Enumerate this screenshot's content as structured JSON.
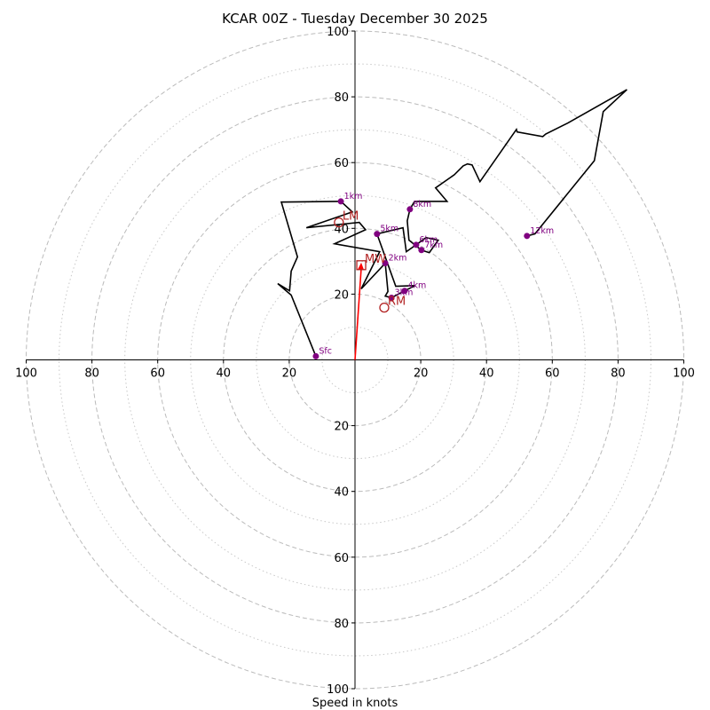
{
  "chart_data": {
    "type": "line",
    "subtype": "hodograph",
    "title": "KCAR 00Z - Tuesday December 30 2025",
    "xlabel": "Speed in knots",
    "ylabel": "",
    "units": "knots",
    "xlim": [
      -100,
      100
    ],
    "ylim": [
      -100,
      100
    ],
    "rings": {
      "dashed": [
        20,
        40,
        60,
        80,
        100
      ],
      "dotted": [
        10,
        30,
        50,
        70,
        90
      ]
    },
    "x_tick_labels": [
      "100",
      "80",
      "60",
      "40",
      "20",
      "20",
      "40",
      "60",
      "80",
      "100"
    ],
    "x_tick_values": [
      -100,
      -80,
      -60,
      -40,
      -20,
      20,
      40,
      60,
      80,
      100
    ],
    "y_tick_labels": [
      "100",
      "80",
      "60",
      "40",
      "20",
      "20",
      "40",
      "60",
      "80",
      "100"
    ],
    "y_tick_values": [
      100,
      80,
      60,
      40,
      20,
      -20,
      -40,
      -60,
      -80,
      -100
    ],
    "grid": true,
    "legend": "none",
    "colors": {
      "trace": "#000000",
      "height_marker": "#800080",
      "storm_motion": "#b22222",
      "arrow": "#ff0000",
      "grid": "#bbbbbb"
    },
    "trace": {
      "name": "Wind profile",
      "u": [
        -11.9,
        -19.4,
        -23.5,
        -19.9,
        -19.4,
        -17.5,
        -22.4,
        -4.3,
        -0.8,
        -14.8,
        1.3,
        3.2,
        -6.2,
        7.5,
        1.9,
        9.2,
        10.0,
        9.2,
        11.1,
        15.1,
        18.3,
        12.4,
        6.7,
        14.6,
        15.6,
        18.6,
        21.6,
        25.3,
        22.6,
        20.2,
        16.4,
        15.9,
        16.7,
        18.1,
        28.0,
        24.5,
        30.2,
        32.9,
        34.2,
        35.6,
        38.0,
        49.1,
        49.3,
        57.1,
        58.0,
        64.7,
        82.7,
        75.5,
        72.8,
        54.7,
        52.3
      ],
      "v": [
        1.1,
        19.7,
        23.2,
        21.0,
        27.0,
        31.3,
        48.0,
        48.2,
        45.0,
        40.2,
        41.8,
        39.6,
        35.3,
        32.9,
        21.6,
        29.4,
        20.8,
        19.4,
        18.9,
        21.0,
        22.6,
        22.4,
        38.3,
        40.2,
        32.9,
        35.0,
        37.2,
        36.4,
        32.6,
        33.4,
        36.4,
        42.3,
        45.8,
        48.2,
        48.2,
        52.3,
        56.3,
        59.0,
        59.6,
        59.3,
        54.2,
        70.1,
        69.3,
        67.9,
        68.7,
        72.0,
        82.2,
        75.5,
        60.6,
        38.3,
        37.7
      ]
    },
    "height_markers": [
      {
        "label": "Sfc",
        "u": -11.9,
        "v": 1.1
      },
      {
        "label": "1km",
        "u": -4.3,
        "v": 48.2
      },
      {
        "label": "2km",
        "u": 9.2,
        "v": 29.4
      },
      {
        "label": "3km",
        "u": 11.1,
        "v": 18.9
      },
      {
        "label": "4km",
        "u": 15.1,
        "v": 21.0
      },
      {
        "label": "5km",
        "u": 6.7,
        "v": 38.3
      },
      {
        "label": "6km",
        "u": 18.6,
        "v": 35.0
      },
      {
        "label": "7km",
        "u": 20.2,
        "v": 33.4
      },
      {
        "label": "8km",
        "u": 16.7,
        "v": 45.8
      },
      {
        "label": "12km",
        "u": 52.3,
        "v": 37.7
      }
    ],
    "storm_motions": [
      {
        "label": "LM",
        "marker": "circle",
        "u": -4.9,
        "v": 41.8
      },
      {
        "label": "MW",
        "marker": "square",
        "u": 1.9,
        "v": 28.8
      },
      {
        "label": "RM",
        "marker": "circle",
        "u": 8.9,
        "v": 15.9
      }
    ],
    "arrow": {
      "u": 1.9,
      "v": 29.6
    }
  }
}
